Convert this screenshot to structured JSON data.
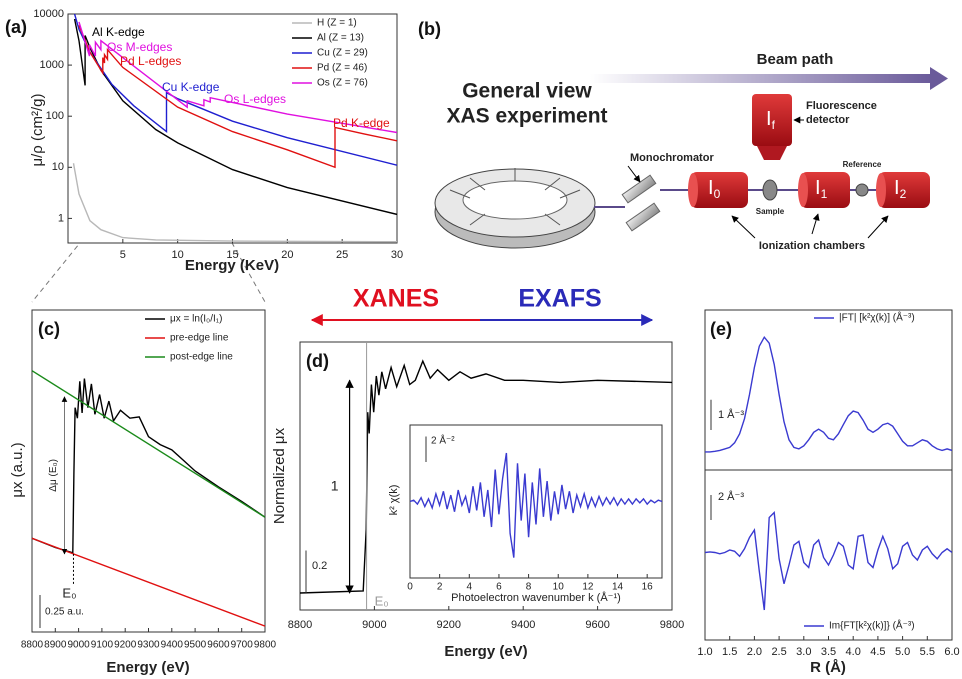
{
  "chart_data": [
    {
      "type": "line",
      "label": "(a)",
      "x_label": "Energy (KeV)",
      "y_label": "μ/ρ (cm²/g)",
      "log_y": true,
      "xlim": [
        0,
        30
      ],
      "ylim": [
        0.33,
        10000
      ],
      "xticks": [
        5,
        10,
        15,
        20,
        25,
        30
      ],
      "yticks": [
        1,
        10,
        100,
        1000,
        10000
      ],
      "legend": "upper right",
      "series": [
        {
          "name": "H (Z = 1)",
          "color": "#b8b8b8",
          "x": [
            0.5,
            1,
            2,
            3,
            5,
            8,
            15,
            30
          ],
          "values": [
            12,
            3,
            0.9,
            0.6,
            0.42,
            0.38,
            0.36,
            0.35
          ]
        },
        {
          "name": "Al (Z = 13)",
          "color": "#000000",
          "x": [
            0.6,
            1,
            1.56,
            1.56,
            2,
            3,
            5,
            8,
            10,
            15,
            20,
            30
          ],
          "values": [
            8000,
            3000,
            400,
            3800,
            2200,
            800,
            200,
            55,
            30,
            9,
            4,
            1.2
          ]
        },
        {
          "name": "Cu (Z = 29)",
          "color": "#1f1fd0",
          "x": [
            0.6,
            1,
            2,
            4,
            6,
            8.98,
            8.98,
            10,
            15,
            20,
            30
          ],
          "values": [
            10000,
            5000,
            1800,
            420,
            160,
            50,
            290,
            220,
            80,
            38,
            11
          ]
        },
        {
          "name": "Pd (Z = 46)",
          "color": "#e01010",
          "x": [
            1,
            2,
            3.17,
            3.17,
            3.33,
            3.33,
            3.6,
            3.6,
            5,
            10,
            15,
            20,
            24.35,
            24.35,
            27,
            30
          ],
          "values": [
            6000,
            1800,
            700,
            1400,
            1100,
            1600,
            1300,
            2000,
            900,
            150,
            50,
            22,
            10,
            60,
            45,
            33
          ]
        },
        {
          "name": "Os (Z = 76)",
          "color": "#e010e0",
          "x": [
            1,
            1.96,
            1.96,
            2.5,
            2.5,
            3,
            3,
            5,
            10.87,
            10.87,
            12.39,
            12.39,
            12.97,
            12.97,
            20,
            30
          ],
          "values": [
            7000,
            1500,
            2500,
            1500,
            2800,
            2000,
            3000,
            1400,
            150,
            200,
            160,
            210,
            190,
            230,
            110,
            48
          ]
        }
      ],
      "annotations": [
        {
          "text": "Al K-edge",
          "color": "#000000"
        },
        {
          "text": "Os M-edges",
          "color": "#e010e0"
        },
        {
          "text": "Pd L-edges",
          "color": "#e01010"
        },
        {
          "text": "Cu K-edge",
          "color": "#1f1fd0"
        },
        {
          "text": "Os L-edges",
          "color": "#e010e0"
        },
        {
          "text": "Pd K-edge",
          "color": "#e01010"
        }
      ]
    },
    {
      "type": "line",
      "label": "(c)",
      "x_label": "Energy (eV)",
      "y_label": "μx (a.u.)",
      "xlim": [
        8800,
        9800
      ],
      "ylim": [
        0,
        2.44
      ],
      "xticks": [
        8800,
        8900,
        9000,
        9100,
        9200,
        9300,
        9400,
        9500,
        9600,
        9700,
        9800
      ],
      "legend": "upper right",
      "series": [
        {
          "name": "μx = ln(I₀/I₁)",
          "color": "#000000",
          "x": [
            8800,
            8900,
            8975,
            8980,
            8985,
            8995,
            9005,
            9015,
            9025,
            9040,
            9055,
            9070,
            9090,
            9110,
            9130,
            9150,
            9180,
            9220,
            9260,
            9300,
            9350,
            9400,
            9450,
            9500,
            9600,
            9700,
            9800
          ],
          "values": [
            0.71,
            0.64,
            0.6,
            1.2,
            1.7,
            1.62,
            1.9,
            1.66,
            1.92,
            1.7,
            1.88,
            1.65,
            1.8,
            1.62,
            1.75,
            1.6,
            1.68,
            1.62,
            1.63,
            1.48,
            1.42,
            1.38,
            1.3,
            1.22,
            1.1,
            0.99,
            0.87
          ]
        },
        {
          "name": "pre-edge line",
          "color": "#e01010",
          "x": [
            8800,
            9800
          ],
          "values": [
            0.71,
            0.045
          ]
        },
        {
          "name": "post-edge line",
          "color": "#1a8a1a",
          "x": [
            8800,
            9800
          ],
          "values": [
            1.98,
            0.87
          ]
        }
      ],
      "e0": 8978,
      "e0_label": "E₀",
      "delta_label": "Δμ (E₀)",
      "scale_bar": {
        "value": 0.25,
        "label": "0.25 a.u."
      }
    },
    {
      "type": "line",
      "label": "(d)",
      "x_label": "Energy (eV)",
      "y_label": "Normalized μx",
      "xlim": [
        8800,
        9800
      ],
      "ylim": [
        -0.08,
        1.18
      ],
      "xticks": [
        8800,
        9000,
        9200,
        9400,
        9600,
        9800
      ],
      "series": [
        {
          "color": "#000000",
          "x": [
            8800,
            8970,
            8978,
            8982,
            8986,
            8992,
            8998,
            9005,
            9012,
            9020,
            9030,
            9045,
            9060,
            9080,
            9095,
            9110,
            9130,
            9150,
            9170,
            9200,
            9230,
            9260,
            9300,
            9350,
            9400,
            9500,
            9600,
            9800
          ],
          "values": [
            0,
            0.01,
            0.3,
            0.85,
            0.75,
            0.98,
            0.85,
            1.02,
            0.93,
            1.04,
            0.96,
            1.06,
            0.97,
            1.07,
            0.98,
            1.0,
            1.09,
            1.01,
            1.05,
            1.0,
            1.04,
            1.01,
            1.03,
            1.0,
            1.0,
            0.99,
            1.0,
            0.99
          ]
        }
      ],
      "e0": 8979,
      "e0_label": "E₀",
      "edge_step": 1,
      "scale_bar": 0.2,
      "header": [
        {
          "text": "XANES",
          "color": "#e01020"
        },
        {
          "text": "EXAFS",
          "color": "#2a2ab8"
        }
      ]
    },
    {
      "type": "line",
      "x_label": "Photoelectron wavenumber k (Å⁻¹)",
      "y_label": "k² χ(k)",
      "xlim": [
        0,
        17
      ],
      "ylim": [
        -6,
        6
      ],
      "xticks": [
        0,
        2,
        4,
        6,
        8,
        10,
        12,
        14,
        16
      ],
      "series": [
        {
          "color": "#3a3ad0",
          "x": [
            0,
            0.25,
            0.5,
            0.75,
            1,
            1.25,
            1.5,
            1.75,
            2,
            2.25,
            2.5,
            2.75,
            3,
            3.25,
            3.5,
            3.75,
            4,
            4.25,
            4.5,
            4.75,
            5,
            5.25,
            5.5,
            5.75,
            6,
            6.25,
            6.5,
            6.75,
            7,
            7.25,
            7.5,
            7.75,
            8,
            8.25,
            8.5,
            8.75,
            9,
            9.25,
            9.5,
            9.75,
            10,
            10.25,
            10.5,
            10.75,
            11,
            11.25,
            11.5,
            11.75,
            12,
            12.25,
            12.5,
            12.75,
            13,
            13.25,
            13.5,
            13.75,
            14,
            14.25,
            14.5,
            14.75,
            15,
            15.25,
            15.5,
            15.75,
            16,
            16.25,
            16.5,
            16.75,
            17
          ],
          "values": [
            0,
            0.1,
            -0.2,
            0.3,
            -0.4,
            0.2,
            -0.5,
            0.6,
            -0.3,
            0.8,
            -0.6,
            0.5,
            -0.8,
            0.9,
            -0.3,
            0.4,
            -0.9,
            1.2,
            -0.7,
            1.5,
            -1.2,
            0.9,
            -2.0,
            2.5,
            -1.0,
            1.8,
            3.8,
            -2.5,
            -4.4,
            3.0,
            -1.5,
            2.2,
            -2.8,
            1.5,
            -1.8,
            2.6,
            -1.2,
            1.6,
            -1.5,
            0.8,
            -1.0,
            1.3,
            -0.6,
            0.8,
            -0.9,
            0.5,
            -0.4,
            0.6,
            -0.5,
            0.3,
            -0.4,
            0.4,
            -0.3,
            0.3,
            -0.2,
            0.3,
            -0.3,
            0.2,
            -0.2,
            0.2,
            -0.2,
            0.2,
            -0.1,
            0.2,
            -0.2,
            0.1,
            -0.1,
            0.1,
            0
          ]
        }
      ],
      "scale_bar": {
        "value": 2,
        "label": "2 Å⁻²"
      }
    },
    {
      "type": "line",
      "label": "(e)",
      "xlim": [
        1,
        6
      ],
      "ylim": [
        -0.5,
        4.8
      ],
      "legend": "upper right",
      "x": [
        1,
        1.1,
        1.2,
        1.3,
        1.4,
        1.5,
        1.6,
        1.7,
        1.8,
        1.9,
        2,
        2.1,
        2.2,
        2.3,
        2.4,
        2.5,
        2.6,
        2.7,
        2.8,
        2.9,
        3,
        3.1,
        3.2,
        3.3,
        3.4,
        3.5,
        3.6,
        3.7,
        3.8,
        3.9,
        4,
        4.1,
        4.2,
        4.3,
        4.4,
        4.5,
        4.6,
        4.7,
        4.8,
        4.9,
        5,
        5.1,
        5.2,
        5.3,
        5.4,
        5.5,
        5.6,
        5.7,
        5.8,
        5.9,
        6
      ],
      "series": [
        {
          "name": "|FT| [k²χ(k)] (Å⁻³)",
          "color": "#3a3ad0",
          "values": [
            0.1,
            0.1,
            0.12,
            0.15,
            0.2,
            0.25,
            0.4,
            0.7,
            1.2,
            2.0,
            2.9,
            3.6,
            3.9,
            3.7,
            3.0,
            2.0,
            1.1,
            0.5,
            0.25,
            0.2,
            0.3,
            0.5,
            0.75,
            0.85,
            0.75,
            0.55,
            0.5,
            0.7,
            1.0,
            1.3,
            1.45,
            1.4,
            1.15,
            0.85,
            0.75,
            0.85,
            1.0,
            1.05,
            0.95,
            0.7,
            0.45,
            0.3,
            0.3,
            0.4,
            0.5,
            0.45,
            0.3,
            0.2,
            0.15,
            0.2,
            0.15
          ]
        }
      ],
      "scale_bar": {
        "value": 1,
        "label": "1 Å⁻³"
      }
    },
    {
      "type": "line",
      "x_label": "R (Å)",
      "xlim": [
        1,
        6
      ],
      "ylim": [
        -7,
        6.6
      ],
      "legend": "lower right",
      "xticks": [
        {
          "value": 1,
          "label": "1.0"
        },
        1.5,
        {
          "value": 2,
          "label": "2.0"
        },
        2.5,
        {
          "value": 3,
          "label": "3.0"
        },
        3.5,
        {
          "value": 4,
          "label": "4.0"
        },
        4.5,
        {
          "value": 5,
          "label": "5.0"
        },
        5.5,
        {
          "value": 6,
          "label": "6.0"
        }
      ],
      "x": [
        1,
        1.1,
        1.2,
        1.3,
        1.4,
        1.5,
        1.6,
        1.7,
        1.8,
        1.9,
        2,
        2.1,
        2.2,
        2.3,
        2.4,
        2.5,
        2.6,
        2.7,
        2.8,
        2.9,
        3,
        3.1,
        3.2,
        3.3,
        3.4,
        3.5,
        3.6,
        3.7,
        3.8,
        3.9,
        4,
        4.1,
        4.2,
        4.3,
        4.4,
        4.5,
        4.6,
        4.7,
        4.8,
        4.9,
        5,
        5.1,
        5.2,
        5.3,
        5.4,
        5.5,
        5.6,
        5.7,
        5.8,
        5.9,
        6
      ],
      "series": [
        {
          "name": "Im{FT[k²χ(k)]} (Å⁻³)",
          "color": "#3a3ad0",
          "values": [
            0,
            0.05,
            0,
            -0.1,
            0,
            0.2,
            0.1,
            -0.3,
            0.3,
            1.2,
            1.8,
            -1.5,
            -4.6,
            2.8,
            3.2,
            -0.5,
            -2.5,
            -1.0,
            0.6,
            0.9,
            -0.8,
            -1.2,
            0.6,
            1.0,
            -0.4,
            -1.0,
            -0.2,
            0.8,
            0.5,
            -1.0,
            -1.3,
            1.3,
            1.4,
            -0.8,
            -1.2,
            0.2,
            1.3,
            0.3,
            -1.3,
            -0.9,
            0.5,
            0.8,
            -0.2,
            -0.6,
            0.2,
            0.5,
            -0.1,
            -0.5,
            0,
            0.3,
            0
          ]
        }
      ],
      "scale_bar": {
        "value": 2,
        "label": "2 Å⁻³"
      }
    }
  ],
  "diagram": {
    "label": "(b)",
    "title": [
      "General view",
      "XAS experiment"
    ],
    "beam_path": "Beam path",
    "monochromator": "Monochromator",
    "fluorescence_detector": [
      "Fluorescence",
      "detector"
    ],
    "sample": "Sample",
    "reference": "Reference",
    "ionization_chambers": "Ionization chambers",
    "chambers": [
      {
        "text": "I",
        "sub": "f"
      },
      {
        "text": "I",
        "sub": "0"
      },
      {
        "text": "I",
        "sub": "1"
      },
      {
        "text": "I",
        "sub": "2"
      }
    ]
  }
}
